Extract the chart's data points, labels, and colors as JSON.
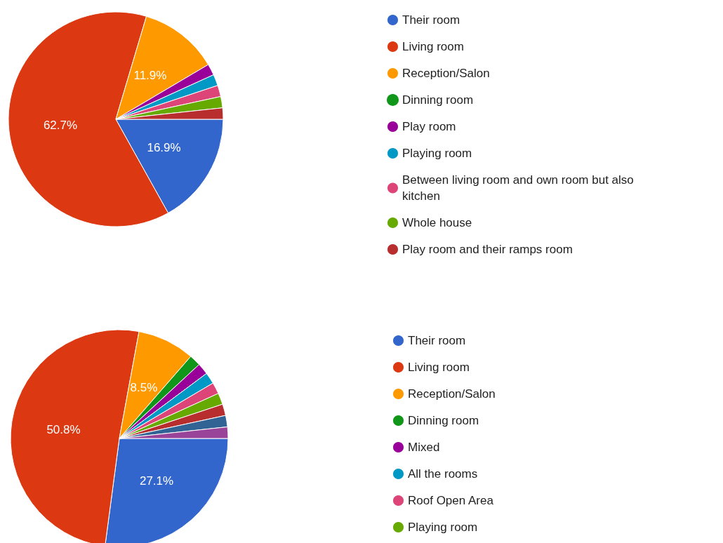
{
  "chart_data": [
    {
      "type": "pie",
      "categories": [
        "Their room",
        "Living room",
        "Reception/Salon",
        "Dinning room",
        "Play room",
        "Playing room",
        "Between living room and own room but also kitchen",
        "Whole house",
        "Play room and their ramps room"
      ],
      "values": [
        16.9,
        62.7,
        11.9,
        0,
        1.7,
        1.7,
        1.7,
        1.7,
        1.7
      ],
      "colors": [
        "#3366cc",
        "#dc3912",
        "#ff9900",
        "#109618",
        "#990099",
        "#0099c6",
        "#dd4477",
        "#66aa00",
        "#b82e2e"
      ],
      "value_labels": [
        "16.9%",
        "62.7%",
        "11.9%",
        null,
        null,
        null,
        null,
        null,
        null
      ],
      "legend": "right"
    },
    {
      "type": "pie",
      "categories": [
        "Their room",
        "Living room",
        "Reception/Salon",
        "Dinning room",
        "Mixed",
        "All the rooms",
        "Roof Open Area",
        "Playing room",
        null,
        null,
        null
      ],
      "values": [
        27.1,
        50.8,
        8.5,
        1.7,
        1.7,
        1.7,
        1.7,
        1.7,
        1.7,
        1.7,
        1.7
      ],
      "colors": [
        "#3366cc",
        "#dc3912",
        "#ff9900",
        "#109618",
        "#990099",
        "#0099c6",
        "#dd4477",
        "#66aa00",
        "#b82e2e",
        "#316395",
        "#994499"
      ],
      "value_labels": [
        "27.1%",
        "50.8%",
        "8.5%",
        null,
        null,
        null,
        null,
        null,
        null,
        null,
        null
      ],
      "legend": "right"
    }
  ]
}
